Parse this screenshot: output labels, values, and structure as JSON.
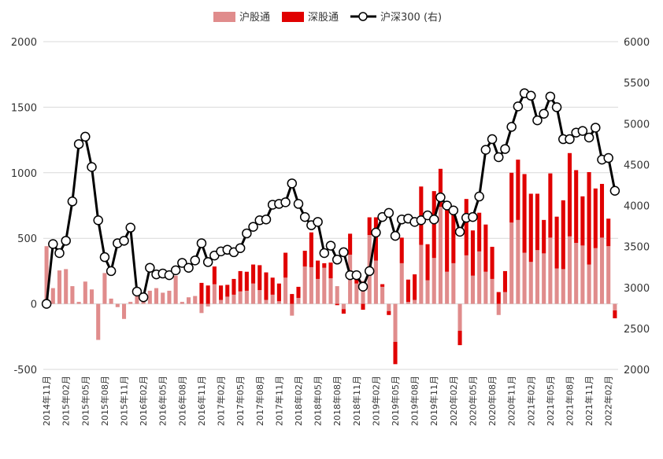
{
  "colors": {
    "sh_connect": "#E08C8C",
    "sz_connect": "#E00000",
    "csi300_line": "#000000",
    "csi300_marker_fill": "#FFFFFF"
  },
  "chart_data": {
    "type": "bar+line",
    "title": "",
    "legend": {
      "placement": "top-center",
      "items": [
        "沪股通",
        "深股通",
        "沪深300 (右)"
      ]
    },
    "x_axis": {
      "tick_labels": [
        "2014年11月",
        "2015年02月",
        "2015年05月",
        "2015年08月",
        "2015年11月",
        "2016年02月",
        "2016年05月",
        "2016年08月",
        "2016年11月",
        "2017年02月",
        "2017年05月",
        "2017年08月",
        "2017年11月",
        "2018年02月",
        "2018年05月",
        "2018年08月",
        "2018年11月",
        "2019年02月",
        "2019年05月",
        "2019年08月",
        "2019年11月",
        "2020年02月",
        "2020年05月",
        "2020年08月",
        "2020年11月",
        "2021年02月",
        "2021年05月",
        "2021年08月",
        "2021年11月",
        "2022年02月"
      ],
      "tick_every_n_months": 3
    },
    "y_axis_left": {
      "min": -500,
      "max": 2000,
      "ticks": [
        -500,
        0,
        500,
        1000,
        1500,
        2000
      ],
      "grid": true
    },
    "y_axis_right": {
      "min": 2000,
      "max": 6000,
      "ticks": [
        2000,
        2500,
        3000,
        3500,
        4000,
        4500,
        5000,
        5500,
        6000
      ]
    },
    "months": [
      "2014-11",
      "2014-12",
      "2015-01",
      "2015-02",
      "2015-03",
      "2015-04",
      "2015-05",
      "2015-06",
      "2015-07",
      "2015-08",
      "2015-09",
      "2015-10",
      "2015-11",
      "2015-12",
      "2016-01",
      "2016-02",
      "2016-03",
      "2016-04",
      "2016-05",
      "2016-06",
      "2016-07",
      "2016-08",
      "2016-09",
      "2016-10",
      "2016-11",
      "2016-12",
      "2017-01",
      "2017-02",
      "2017-03",
      "2017-04",
      "2017-05",
      "2017-06",
      "2017-07",
      "2017-08",
      "2017-09",
      "2017-10",
      "2017-11",
      "2017-12",
      "2018-01",
      "2018-02",
      "2018-03",
      "2018-04",
      "2018-05",
      "2018-06",
      "2018-07",
      "2018-08",
      "2018-09",
      "2018-10",
      "2018-11",
      "2018-12",
      "2019-01",
      "2019-02",
      "2019-03",
      "2019-04",
      "2019-05",
      "2019-06",
      "2019-07",
      "2019-08",
      "2019-09",
      "2019-10",
      "2019-11",
      "2019-12",
      "2020-01",
      "2020-02",
      "2020-03",
      "2020-04",
      "2020-05",
      "2020-06",
      "2020-07",
      "2020-08",
      "2020-09",
      "2020-10",
      "2020-11",
      "2020-12",
      "2021-01",
      "2021-02",
      "2021-03",
      "2021-04",
      "2021-05",
      "2021-06",
      "2021-07",
      "2021-08",
      "2021-09",
      "2021-10",
      "2021-11",
      "2021-12",
      "2022-01",
      "2022-02",
      "2022-03"
    ],
    "series": [
      {
        "name": "沪股通",
        "type": "bar",
        "axis": "left",
        "values": [
          440,
          120,
          255,
          265,
          135,
          15,
          170,
          110,
          -275,
          235,
          40,
          -25,
          -115,
          15,
          60,
          25,
          100,
          120,
          85,
          100,
          215,
          15,
          50,
          60,
          -70,
          -20,
          150,
          30,
          55,
          70,
          95,
          100,
          155,
          105,
          30,
          70,
          20,
          200,
          -90,
          45,
          285,
          280,
          190,
          275,
          195,
          135,
          -40,
          375,
          155,
          175,
          525,
          330,
          130,
          -55,
          -290,
          310,
          15,
          30,
          450,
          180,
          350,
          740,
          245,
          310,
          -205,
          370,
          215,
          400,
          245,
          190,
          -85,
          90,
          620,
          640,
          390,
          320,
          410,
          385,
          505,
          270,
          265,
          515,
          465,
          445,
          300,
          425,
          505,
          440,
          -50
        ],
        "note": "values in 亿元 (estimated)"
      },
      {
        "name": "深股通",
        "type": "bar",
        "axis": "left",
        "values": [
          0,
          0,
          0,
          0,
          0,
          0,
          0,
          0,
          0,
          0,
          0,
          0,
          0,
          0,
          0,
          0,
          0,
          0,
          0,
          0,
          0,
          0,
          0,
          0,
          160,
          140,
          135,
          110,
          90,
          120,
          155,
          145,
          145,
          190,
          210,
          130,
          135,
          190,
          75,
          85,
          120,
          265,
          140,
          35,
          120,
          -10,
          -35,
          160,
          40,
          -45,
          135,
          330,
          20,
          -30,
          -170,
          195,
          170,
          195,
          445,
          275,
          510,
          290,
          480,
          390,
          -110,
          430,
          345,
          295,
          360,
          245,
          90,
          160,
          380,
          460,
          600,
          520,
          430,
          255,
          490,
          395,
          525,
          635,
          555,
          375,
          705,
          455,
          410,
          210,
          -60
        ],
        "note": "values in 亿元 (estimated)"
      },
      {
        "name": "沪深300 (右)",
        "type": "line",
        "axis": "right",
        "values": [
          2800,
          3530,
          3420,
          3570,
          4050,
          4750,
          4840,
          4470,
          3820,
          3370,
          3200,
          3540,
          3570,
          3730,
          2950,
          2880,
          3240,
          3160,
          3170,
          3150,
          3210,
          3300,
          3240,
          3330,
          3540,
          3310,
          3390,
          3440,
          3460,
          3430,
          3480,
          3660,
          3740,
          3820,
          3830,
          4010,
          4020,
          4040,
          4270,
          4020,
          3860,
          3760,
          3800,
          3420,
          3510,
          3340,
          3430,
          3150,
          3150,
          3010,
          3200,
          3670,
          3860,
          3910,
          3630,
          3830,
          3840,
          3800,
          3820,
          3880,
          3830,
          4100,
          4000,
          3940,
          3680,
          3850,
          3860,
          4110,
          4680,
          4810,
          4590,
          4690,
          4960,
          5210,
          5370,
          5340,
          5040,
          5120,
          5330,
          5200,
          4810,
          4810,
          4890,
          4910,
          4830,
          4950,
          4560,
          4580,
          4180
        ],
        "note": "index level (estimated)"
      }
    ]
  }
}
